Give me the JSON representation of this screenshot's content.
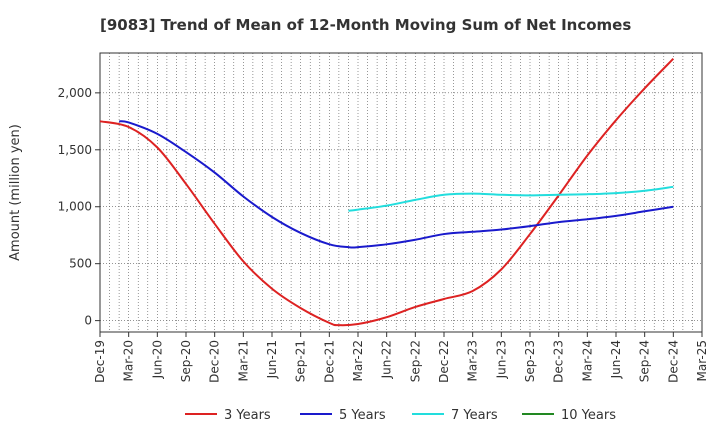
{
  "chart_data": {
    "type": "line",
    "title": "[9083]  Trend of Mean of 12-Month Moving Sum of Net Incomes",
    "ylabel": "Amount (million yen)",
    "xlabel": "",
    "ylim": [
      -100,
      2350
    ],
    "yticks": [
      0,
      500,
      1000,
      1500,
      2000
    ],
    "ytick_labels": [
      "0",
      "500",
      "1,000",
      "1,500",
      "2,000"
    ],
    "x_ticks": [
      "Dec-19",
      "Mar-20",
      "Jun-20",
      "Sep-20",
      "Dec-20",
      "Mar-21",
      "Jun-21",
      "Sep-21",
      "Dec-21",
      "Mar-22",
      "Jun-22",
      "Sep-22",
      "Dec-22",
      "Mar-23",
      "Jun-23",
      "Sep-23",
      "Dec-23",
      "Mar-24",
      "Jun-24",
      "Sep-24",
      "Dec-24",
      "Mar-25"
    ],
    "grid": true,
    "legend_position": "bottom",
    "series": [
      {
        "name": "3 Years",
        "color": "#dd2222",
        "points": [
          [
            "Dec-19",
            1750
          ],
          [
            "Mar-20",
            1700
          ],
          [
            "Jun-20",
            1520
          ],
          [
            "Sep-20",
            1200
          ],
          [
            "Dec-20",
            850
          ],
          [
            "Mar-21",
            520
          ],
          [
            "Jun-21",
            280
          ],
          [
            "Sep-21",
            110
          ],
          [
            "Dec-21",
            -20
          ],
          [
            "Jan-22",
            -40
          ],
          [
            "Mar-22",
            -30
          ],
          [
            "Jun-22",
            30
          ],
          [
            "Sep-22",
            120
          ],
          [
            "Dec-22",
            190
          ],
          [
            "Mar-23",
            260
          ],
          [
            "Jun-23",
            450
          ],
          [
            "Sep-23",
            760
          ],
          [
            "Dec-23",
            1100
          ],
          [
            "Mar-24",
            1450
          ],
          [
            "Jun-24",
            1760
          ],
          [
            "Sep-24",
            2040
          ],
          [
            "Dec-24",
            2300
          ]
        ]
      },
      {
        "name": "5 Years",
        "color": "#1a1acc",
        "points": [
          [
            "Feb-20",
            1750
          ],
          [
            "Mar-20",
            1740
          ],
          [
            "Jun-20",
            1640
          ],
          [
            "Sep-20",
            1480
          ],
          [
            "Dec-20",
            1300
          ],
          [
            "Mar-21",
            1090
          ],
          [
            "Jun-21",
            910
          ],
          [
            "Sep-21",
            770
          ],
          [
            "Dec-21",
            670
          ],
          [
            "Feb-22",
            645
          ],
          [
            "Mar-22",
            645
          ],
          [
            "Jun-22",
            670
          ],
          [
            "Sep-22",
            710
          ],
          [
            "Dec-22",
            760
          ],
          [
            "Mar-23",
            780
          ],
          [
            "Jun-23",
            800
          ],
          [
            "Sep-23",
            830
          ],
          [
            "Dec-23",
            865
          ],
          [
            "Mar-24",
            890
          ],
          [
            "Jun-24",
            920
          ],
          [
            "Sep-24",
            960
          ],
          [
            "Dec-24",
            1000
          ]
        ]
      },
      {
        "name": "7 Years",
        "color": "#22dddd",
        "points": [
          [
            "Feb-22",
            965
          ],
          [
            "Mar-22",
            975
          ],
          [
            "Jun-22",
            1010
          ],
          [
            "Sep-22",
            1060
          ],
          [
            "Dec-22",
            1105
          ],
          [
            "Mar-23",
            1115
          ],
          [
            "Jun-23",
            1105
          ],
          [
            "Sep-23",
            1100
          ],
          [
            "Dec-23",
            1105
          ],
          [
            "Mar-24",
            1110
          ],
          [
            "Jun-24",
            1120
          ],
          [
            "Sep-24",
            1140
          ],
          [
            "Dec-24",
            1175
          ]
        ]
      },
      {
        "name": "10 Years",
        "color": "#228822",
        "points": []
      }
    ]
  }
}
